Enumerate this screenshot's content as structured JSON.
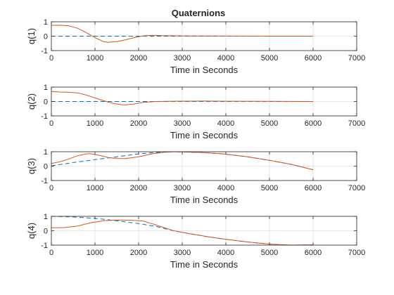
{
  "figure": {
    "title": "Quaternions"
  },
  "colors": {
    "estimate": "#D95319",
    "reference": "#0072BD",
    "grid": "#E6E6E6",
    "axis": "#262626"
  },
  "chart_data": [
    {
      "type": "line",
      "ylabel": "q(1)",
      "xlabel": "Time in Seconds",
      "xlim": [
        0,
        7000
      ],
      "ylim": [
        -1,
        1
      ],
      "xticks": [
        0,
        1000,
        2000,
        3000,
        4000,
        5000,
        6000,
        7000
      ],
      "yticks": [
        -1,
        0,
        1
      ],
      "grid": true,
      "series": [
        {
          "style": "dashed",
          "color": "#0072BD",
          "x": [
            0,
            6000
          ],
          "y": [
            0,
            0
          ]
        },
        {
          "style": "solid",
          "color": "#D95319",
          "x": [
            0,
            200,
            400,
            600,
            800,
            1000,
            1200,
            1300,
            1500,
            1700,
            1900,
            2100,
            2300,
            2600,
            3000,
            4000,
            5000,
            6000
          ],
          "y": [
            0.75,
            0.76,
            0.72,
            0.55,
            0.25,
            -0.1,
            -0.38,
            -0.43,
            -0.38,
            -0.25,
            -0.1,
            0.02,
            0.06,
            0.04,
            0.02,
            0.01,
            0.0,
            0.0
          ]
        }
      ]
    },
    {
      "type": "line",
      "ylabel": "q(2)",
      "xlabel": "Time in Seconds",
      "xlim": [
        0,
        7000
      ],
      "ylim": [
        -1,
        1
      ],
      "xticks": [
        0,
        1000,
        2000,
        3000,
        4000,
        5000,
        6000,
        7000
      ],
      "yticks": [
        -1,
        0,
        1
      ],
      "grid": true,
      "series": [
        {
          "style": "dashed",
          "color": "#0072BD",
          "x": [
            0,
            6000
          ],
          "y": [
            0,
            0
          ]
        },
        {
          "style": "solid",
          "color": "#D95319",
          "x": [
            0,
            200,
            400,
            600,
            800,
            1000,
            1200,
            1400,
            1600,
            1700,
            1900,
            2100,
            2400,
            2800,
            3500,
            4000,
            5000,
            6000
          ],
          "y": [
            0.7,
            0.66,
            0.64,
            0.6,
            0.45,
            0.25,
            0.05,
            -0.12,
            -0.22,
            -0.24,
            -0.17,
            -0.06,
            0.0,
            0.02,
            0.03,
            0.02,
            0.01,
            0.0
          ]
        }
      ]
    },
    {
      "type": "line",
      "ylabel": "q(3)",
      "xlabel": "Time in Seconds",
      "xlim": [
        0,
        7000
      ],
      "ylim": [
        -1,
        1
      ],
      "xticks": [
        0,
        1000,
        2000,
        3000,
        4000,
        5000,
        6000,
        7000
      ],
      "yticks": [
        -1,
        0,
        1
      ],
      "grid": true,
      "series": [
        {
          "style": "dashed",
          "color": "#0072BD",
          "x": [
            0,
            500,
            1000,
            1500,
            2000,
            2500,
            2800,
            3000,
            3500,
            4000,
            4500,
            5000,
            5500,
            6000
          ],
          "y": [
            0.02,
            0.25,
            0.45,
            0.65,
            0.85,
            0.97,
            1.0,
            0.99,
            0.94,
            0.83,
            0.65,
            0.4,
            0.12,
            -0.25
          ]
        },
        {
          "style": "solid",
          "color": "#D95319",
          "x": [
            0,
            200,
            400,
            600,
            800,
            900,
            1100,
            1300,
            1500,
            1700,
            2000,
            2300,
            2600,
            2800,
            3000,
            3500,
            4000,
            4500,
            5000,
            5500,
            6000
          ],
          "y": [
            0.18,
            0.3,
            0.5,
            0.72,
            0.85,
            0.86,
            0.75,
            0.6,
            0.53,
            0.52,
            0.65,
            0.85,
            0.97,
            1.0,
            0.99,
            0.94,
            0.83,
            0.65,
            0.4,
            0.12,
            -0.25
          ]
        }
      ]
    },
    {
      "type": "line",
      "ylabel": "q(4)",
      "xlabel": "Time in Seconds",
      "xlim": [
        0,
        7000
      ],
      "ylim": [
        -1,
        1
      ],
      "xticks": [
        0,
        1000,
        2000,
        3000,
        4000,
        5000,
        6000,
        7000
      ],
      "yticks": [
        -1,
        0,
        1
      ],
      "grid": true,
      "series": [
        {
          "style": "dashed",
          "color": "#0072BD",
          "x": [
            0,
            400,
            800,
            1200,
            1600,
            2000,
            2400,
            2800,
            3200,
            3600,
            4000,
            4500,
            5000,
            5500,
            6000
          ],
          "y": [
            1.0,
            0.97,
            0.9,
            0.8,
            0.65,
            0.5,
            0.3,
            0.0,
            -0.22,
            -0.42,
            -0.6,
            -0.78,
            -0.93,
            -1.0,
            -0.98
          ]
        },
        {
          "style": "solid",
          "color": "#D95319",
          "x": [
            0,
            300,
            600,
            900,
            1200,
            1500,
            1800,
            2100,
            2300,
            2500,
            2800,
            3200,
            3600,
            4000,
            4500,
            5000,
            5500,
            6000
          ],
          "y": [
            0.2,
            0.22,
            0.32,
            0.55,
            0.7,
            0.74,
            0.73,
            0.68,
            0.5,
            0.3,
            0.0,
            -0.22,
            -0.42,
            -0.6,
            -0.78,
            -0.93,
            -1.0,
            -0.98
          ]
        }
      ]
    }
  ]
}
